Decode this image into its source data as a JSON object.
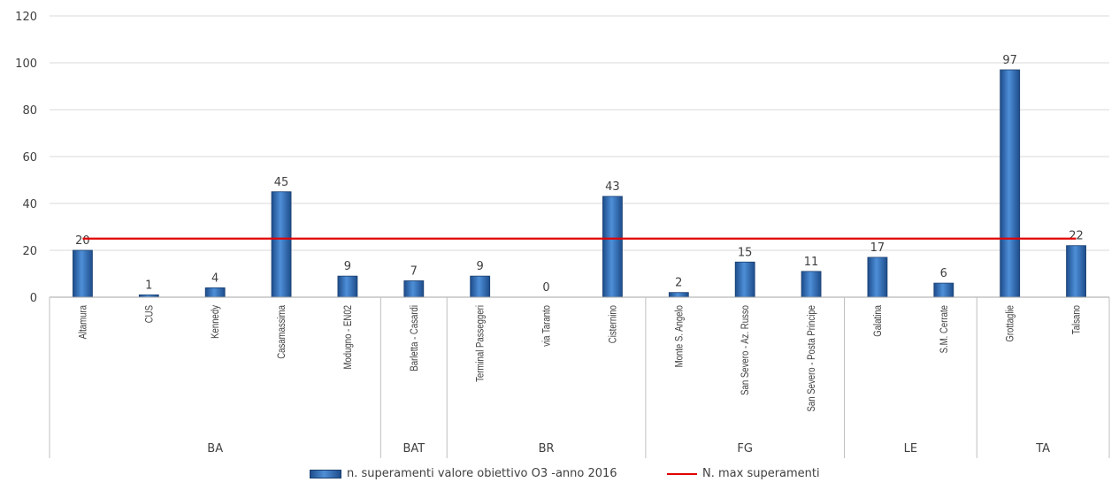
{
  "chart_data": {
    "type": "bar",
    "title": "",
    "xlabel": "",
    "ylabel": "",
    "ylim": [
      0,
      120
    ],
    "yticks": [
      "0",
      "20",
      "40",
      "60",
      "80",
      "100",
      "120"
    ],
    "grid": true,
    "legend_position": "bottom",
    "groups": [
      {
        "name": "BA",
        "categories": [
          "Altamura",
          "CUS",
          "Kennedy",
          "Casamassima",
          "Modugno - EN02"
        ]
      },
      {
        "name": "BAT",
        "categories": [
          "Barletta - Casardi"
        ]
      },
      {
        "name": "BR",
        "categories": [
          "Terminal Passeggeri",
          "via Taranto",
          "Cisternino"
        ]
      },
      {
        "name": "FG",
        "categories": [
          "Monte S. Angelo",
          "San Severo - Az. Russo",
          "San Severo - Posta Principe"
        ]
      },
      {
        "name": "LE",
        "categories": [
          "Galatina",
          "S.M. Cerrate"
        ]
      },
      {
        "name": "TA",
        "categories": [
          "Grottaglie",
          "Talsano"
        ]
      }
    ],
    "categories": [
      "Altamura",
      "CUS",
      "Kennedy",
      "Casamassima",
      "Modugno - EN02",
      "Barletta - Casardi",
      "Terminal Passeggeri",
      "via Taranto",
      "Cisternino",
      "Monte S. Angelo",
      "San Severo - Az. Russo",
      "San Severo - Posta Principe",
      "Galatina",
      "S.M. Cerrate",
      "Grottaglie",
      "Talsano"
    ],
    "series": [
      {
        "name": "n. superamenti valore obiettivo O3 -anno 2016",
        "type": "bar",
        "values": [
          20,
          1,
          4,
          45,
          9,
          7,
          9,
          0,
          43,
          2,
          15,
          11,
          17,
          6,
          97,
          22
        ],
        "color": "#2e6db8"
      },
      {
        "name": "N. max superamenti",
        "type": "line",
        "value": 25,
        "color": "#e00000"
      }
    ]
  }
}
